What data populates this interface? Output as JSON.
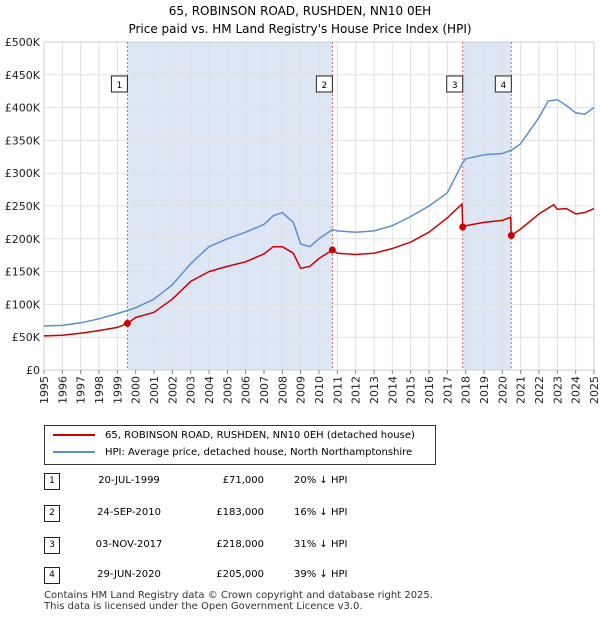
{
  "title_line1": "65, ROBINSON ROAD, RUSHDEN, NN10 0EH",
  "title_line2": "Price paid vs. HM Land Registry's House Price Index (HPI)",
  "colors": {
    "property": "#cc0000",
    "hpi": "#5b8fd0",
    "shade": "#dde6f4",
    "vline": "#e06666",
    "grid": "#e0e0e0"
  },
  "legend": {
    "property": "65, ROBINSON ROAD, RUSHDEN, NN10 0EH (detached house)",
    "hpi": "HPI: Average price, detached house, North Northamptonshire"
  },
  "sales": [
    {
      "num": "1",
      "date": "20-JUL-1999",
      "price": "£71,000",
      "hpi": "20% ↓ HPI"
    },
    {
      "num": "2",
      "date": "24-SEP-2010",
      "price": "£183,000",
      "hpi": "16% ↓ HPI"
    },
    {
      "num": "3",
      "date": "03-NOV-2017",
      "price": "£218,000",
      "hpi": "31% ↓ HPI"
    },
    {
      "num": "4",
      "date": "29-JUN-2020",
      "price": "£205,000",
      "hpi": "39% ↓ HPI"
    }
  ],
  "footer_line1": "Contains HM Land Registry data © Crown copyright and database right 2025.",
  "footer_line2": "This data is licensed under the Open Government Licence v3.0.",
  "chart_data": {
    "type": "line",
    "title": "65, ROBINSON ROAD, RUSHDEN, NN10 0EH",
    "subtitle": "Price paid vs. HM Land Registry's House Price Index (HPI)",
    "xlabel": "",
    "ylabel": "",
    "xlim": [
      1995,
      2025
    ],
    "ylim": [
      0,
      500000
    ],
    "x_ticks": [
      "1995",
      "1996",
      "1997",
      "1998",
      "1999",
      "2000",
      "2001",
      "2002",
      "2003",
      "2004",
      "2005",
      "2006",
      "2007",
      "2008",
      "2009",
      "2010",
      "2011",
      "2012",
      "2013",
      "2014",
      "2015",
      "2016",
      "2017",
      "2018",
      "2019",
      "2020",
      "2021",
      "2022",
      "2023",
      "2024",
      "2025"
    ],
    "y_ticks": [
      {
        "value": 0,
        "label": "£0"
      },
      {
        "value": 50000,
        "label": "£50K"
      },
      {
        "value": 100000,
        "label": "£100K"
      },
      {
        "value": 150000,
        "label": "£150K"
      },
      {
        "value": 200000,
        "label": "£200K"
      },
      {
        "value": 250000,
        "label": "£250K"
      },
      {
        "value": 300000,
        "label": "£300K"
      },
      {
        "value": 350000,
        "label": "£350K"
      },
      {
        "value": 400000,
        "label": "£400K"
      },
      {
        "value": 450000,
        "label": "£450K"
      },
      {
        "value": 500000,
        "label": "£500K"
      }
    ],
    "shaded_periods": [
      [
        1999.55,
        2010.73
      ],
      [
        2017.84,
        2020.49
      ]
    ],
    "sale_markers": [
      {
        "label": "1",
        "x": 1999.55,
        "y": 71000
      },
      {
        "label": "2",
        "x": 2010.73,
        "y": 183000
      },
      {
        "label": "3",
        "x": 2017.84,
        "y": 218000
      },
      {
        "label": "4",
        "x": 2020.49,
        "y": 205000
      }
    ],
    "series": [
      {
        "name": "65, ROBINSON ROAD, RUSHDEN, NN10 0EH (detached house)",
        "x": [
          1995,
          1996,
          1997,
          1998,
          1999,
          1999.55,
          2000,
          2001,
          2002,
          2003,
          2004,
          2005,
          2006,
          2007,
          2007.5,
          2008,
          2008.6,
          2009,
          2009.5,
          2010,
          2010.73,
          2011,
          2012,
          2013,
          2014,
          2015,
          2016,
          2017,
          2017.8,
          2017.84,
          2018,
          2019,
          2020,
          2020.45,
          2020.49,
          2021,
          2022,
          2022.8,
          2023,
          2023.5,
          2024,
          2024.5,
          2025
        ],
        "values": [
          52000,
          53000,
          56000,
          60000,
          65000,
          71000,
          80000,
          88000,
          108000,
          135000,
          150000,
          158000,
          165000,
          177000,
          188000,
          188000,
          178000,
          155000,
          158000,
          170000,
          183000,
          178000,
          176000,
          178000,
          185000,
          195000,
          210000,
          232000,
          253000,
          218000,
          220000,
          225000,
          228000,
          233000,
          205000,
          215000,
          238000,
          252000,
          245000,
          246000,
          238000,
          240000,
          246000
        ]
      },
      {
        "name": "HPI: Average price, detached house, North Northamptonshire",
        "x": [
          1995,
          1996,
          1997,
          1998,
          1999,
          2000,
          2001,
          2002,
          2003,
          2004,
          2005,
          2006,
          2007,
          2007.5,
          2008,
          2008.6,
          2009,
          2009.5,
          2010,
          2010.73,
          2011,
          2012,
          2013,
          2014,
          2015,
          2016,
          2017,
          2017.84,
          2018,
          2019,
          2020,
          2020.49,
          2021,
          2022,
          2022.5,
          2023,
          2023.5,
          2024,
          2024.5,
          2025
        ],
        "values": [
          67000,
          68000,
          72000,
          78000,
          86000,
          95000,
          108000,
          130000,
          162000,
          188000,
          200000,
          210000,
          222000,
          235000,
          240000,
          225000,
          192000,
          188000,
          200000,
          214000,
          212000,
          210000,
          212000,
          220000,
          234000,
          250000,
          270000,
          316000,
          322000,
          328000,
          330000,
          335000,
          345000,
          385000,
          410000,
          412000,
          403000,
          392000,
          390000,
          400000
        ]
      }
    ]
  }
}
